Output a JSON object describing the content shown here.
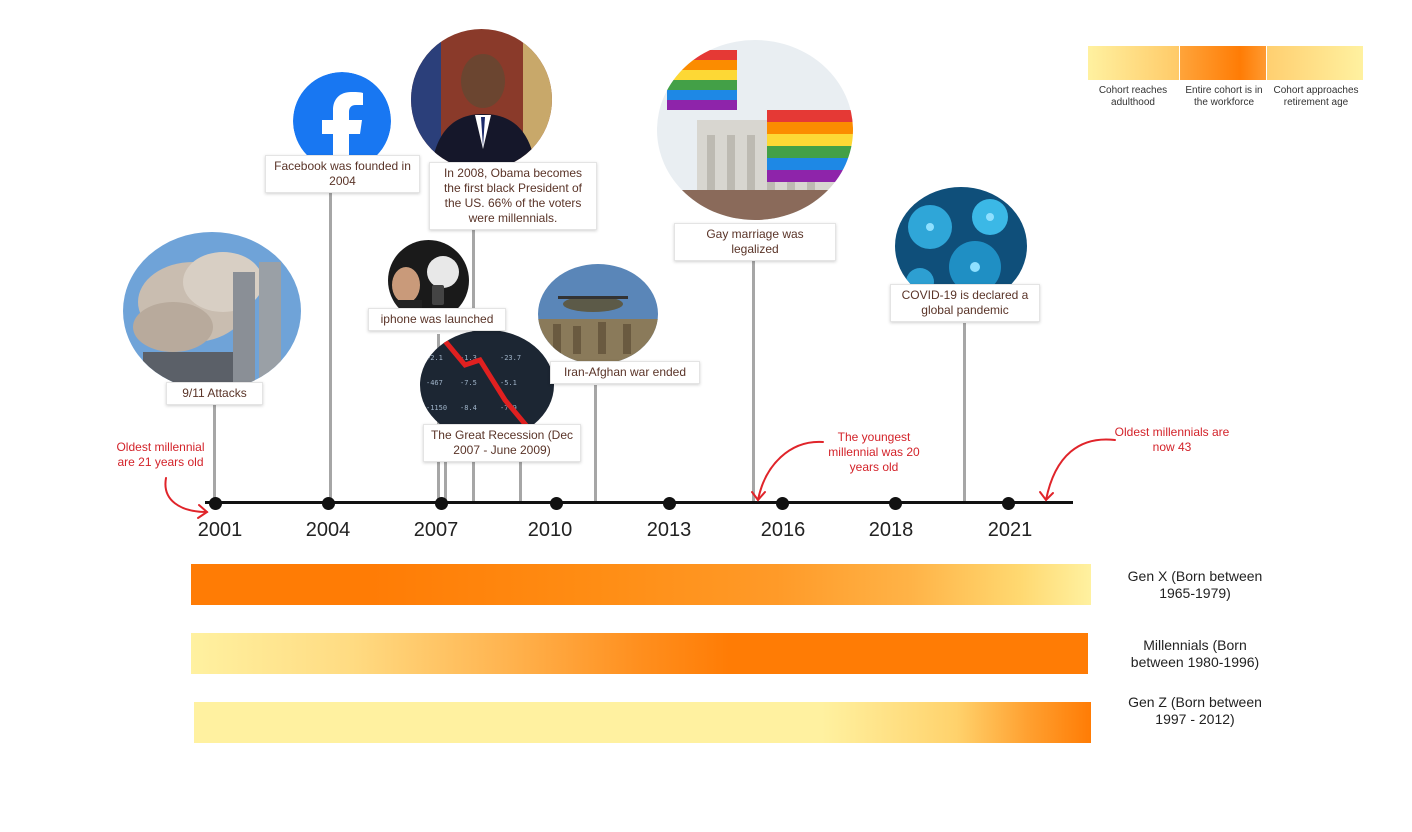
{
  "legend": {
    "items": [
      {
        "label": "Cohort reaches adulthood"
      },
      {
        "label": "Entire cohort is in the workforce"
      },
      {
        "label": "Cohort approaches retirement age"
      }
    ]
  },
  "years": [
    "2001",
    "2004",
    "2007",
    "2010",
    "2013",
    "2016",
    "2018",
    "2021"
  ],
  "events": {
    "attacks": "9/11 Attacks",
    "facebook": "Facebook was founded in 2004",
    "obama": "In 2008, Obama becomes the first black President of the US. 66% of the voters were millennials.",
    "iphone": "iphone was launched",
    "recession": "The Great Recession (Dec 2007 - June 2009)",
    "afghan": "Iran-Afghan war ended",
    "marriage": "Gay marriage was legalized",
    "covid": "COVID-19 is declared a global pandemic"
  },
  "notes": {
    "oldest21": "Oldest millennial are 21 years old",
    "youngest20": "The youngest millennial was 20 years old",
    "oldest43": "Oldest millennials are now 43"
  },
  "cohorts": {
    "genx": "Gen X (Born between 1965-1979)",
    "millennials": "Millennials (Born between 1980-1996)",
    "genz": "Gen Z (Born between 1997 - 2012)"
  },
  "colors": {
    "pale": "#fff1a0",
    "orange": "#ff7c05",
    "annotation": "#d3232a"
  }
}
